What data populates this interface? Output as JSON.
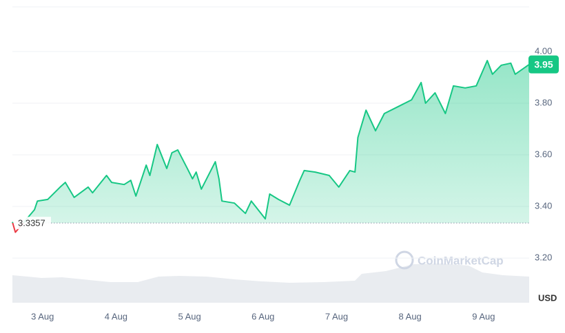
{
  "chart_data": {
    "type": "line",
    "y_label": "USD",
    "watermark": "CoinMarketCap",
    "baseline": 3.3357,
    "current_price": 3.95,
    "xlim": [
      -0.41,
      6.62
    ],
    "xticks": [
      {
        "value": 0,
        "label": "3 Aug"
      },
      {
        "value": 1,
        "label": "4 Aug"
      },
      {
        "value": 2,
        "label": "5 Aug"
      },
      {
        "value": 3,
        "label": "6 Aug"
      },
      {
        "value": 4,
        "label": "7 Aug"
      },
      {
        "value": 5,
        "label": "8 Aug"
      },
      {
        "value": 6,
        "label": "9 Aug"
      }
    ],
    "ylim": [
      3.027,
      4.173
    ],
    "yticks": [
      {
        "value": 3.2,
        "label": "3.20"
      },
      {
        "value": 3.4,
        "label": "3.40"
      },
      {
        "value": 3.6,
        "label": "3.60"
      },
      {
        "value": 3.8,
        "label": "3.80"
      },
      {
        "value": 4.0,
        "label": "4.00"
      }
    ],
    "grid": true,
    "up_color": "#16c784",
    "down_color": "#ea3943",
    "series": [
      {
        "x": [
          -0.41,
          -0.37,
          -0.11,
          -0.07,
          0.07,
          0.24,
          0.31,
          0.43,
          0.62,
          0.68,
          0.87,
          0.94,
          1.11,
          1.2,
          1.27,
          1.41,
          1.46,
          1.56,
          1.69,
          1.76,
          1.84,
          1.97,
          2.04,
          2.09,
          2.16,
          2.35,
          2.4,
          2.44,
          2.61,
          2.76,
          2.84,
          3.03,
          3.09,
          3.21,
          3.36,
          3.5,
          3.56,
          3.71,
          3.9,
          4.03,
          4.18,
          4.25,
          4.29,
          4.4,
          4.53,
          4.65,
          4.84,
          5.02,
          5.15,
          5.21,
          5.34,
          5.48,
          5.59,
          5.75,
          5.9,
          6.05,
          6.12,
          6.24,
          6.37,
          6.43,
          6.62
        ],
        "values": [
          3.34,
          3.3,
          3.387,
          3.421,
          3.427,
          3.475,
          3.493,
          3.435,
          3.475,
          3.453,
          3.52,
          3.493,
          3.485,
          3.501,
          3.44,
          3.56,
          3.52,
          3.64,
          3.547,
          3.608,
          3.619,
          3.547,
          3.507,
          3.533,
          3.467,
          3.573,
          3.507,
          3.421,
          3.413,
          3.373,
          3.421,
          3.352,
          3.448,
          3.427,
          3.405,
          3.501,
          3.539,
          3.533,
          3.52,
          3.475,
          3.539,
          3.533,
          3.667,
          3.773,
          3.693,
          3.76,
          3.787,
          3.813,
          3.88,
          3.8,
          3.84,
          3.76,
          3.867,
          3.859,
          3.867,
          3.965,
          3.912,
          3.947,
          3.955,
          3.912,
          3.95
        ]
      }
    ]
  }
}
